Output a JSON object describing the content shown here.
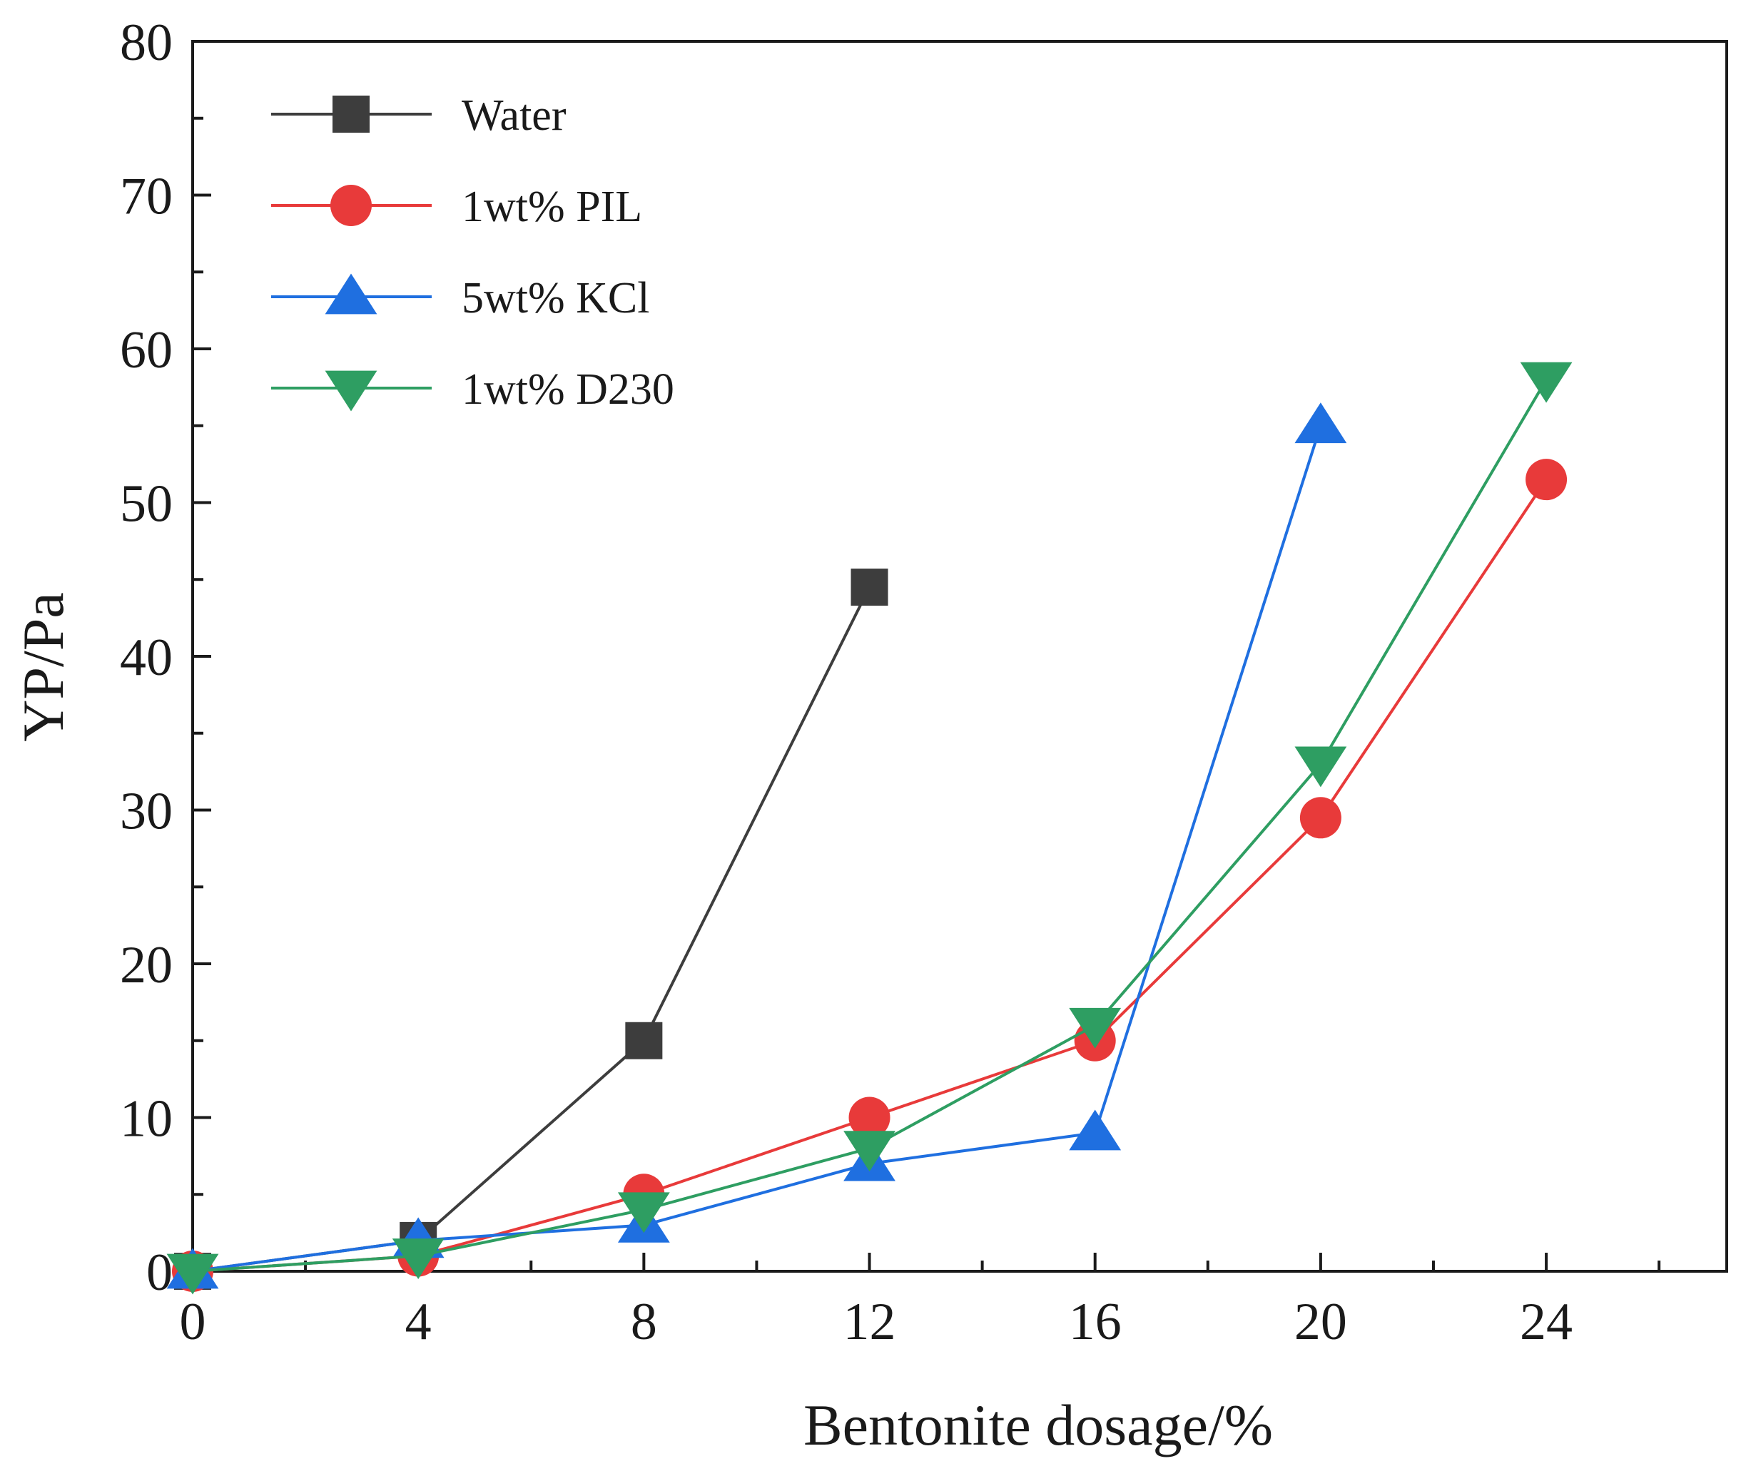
{
  "chart_data": {
    "type": "line",
    "title": "",
    "xlabel": "Bentonite dosage/%",
    "ylabel": "YP/Pa",
    "xlim": [
      0,
      27.2
    ],
    "ylim": [
      0,
      80
    ],
    "x_ticks": [
      0,
      4,
      8,
      12,
      16,
      20,
      24
    ],
    "x_minor_ticks": [
      2,
      6,
      10,
      14,
      18,
      22,
      26
    ],
    "y_ticks": [
      0,
      10,
      20,
      30,
      40,
      50,
      60,
      70,
      80
    ],
    "y_minor_ticks": [
      5,
      15,
      25,
      35,
      45,
      55,
      65,
      75
    ],
    "grid": false,
    "legend_position": "top-left",
    "series": [
      {
        "name": "Water",
        "color": "#3d3d3d",
        "marker": "square",
        "x": [
          0,
          4,
          8,
          12
        ],
        "y": [
          0,
          2,
          15,
          44.5
        ]
      },
      {
        "name": "1wt% PIL",
        "color": "#e83a3a",
        "marker": "circle",
        "x": [
          0,
          4,
          8,
          12,
          16,
          20,
          24
        ],
        "y": [
          0,
          1,
          5,
          10,
          15,
          29.5,
          51.5
        ]
      },
      {
        "name": "5wt% KCl",
        "color": "#1f6fe0",
        "marker": "triangle-up",
        "x": [
          0,
          4,
          8,
          12,
          16,
          20
        ],
        "y": [
          0,
          2,
          3,
          7,
          9,
          55
        ]
      },
      {
        "name": "1wt% D230",
        "color": "#2e9e62",
        "marker": "triangle-down",
        "x": [
          0,
          4,
          8,
          12,
          16,
          20,
          24
        ],
        "y": [
          0,
          1,
          4,
          8,
          16,
          33,
          58
        ]
      }
    ]
  }
}
